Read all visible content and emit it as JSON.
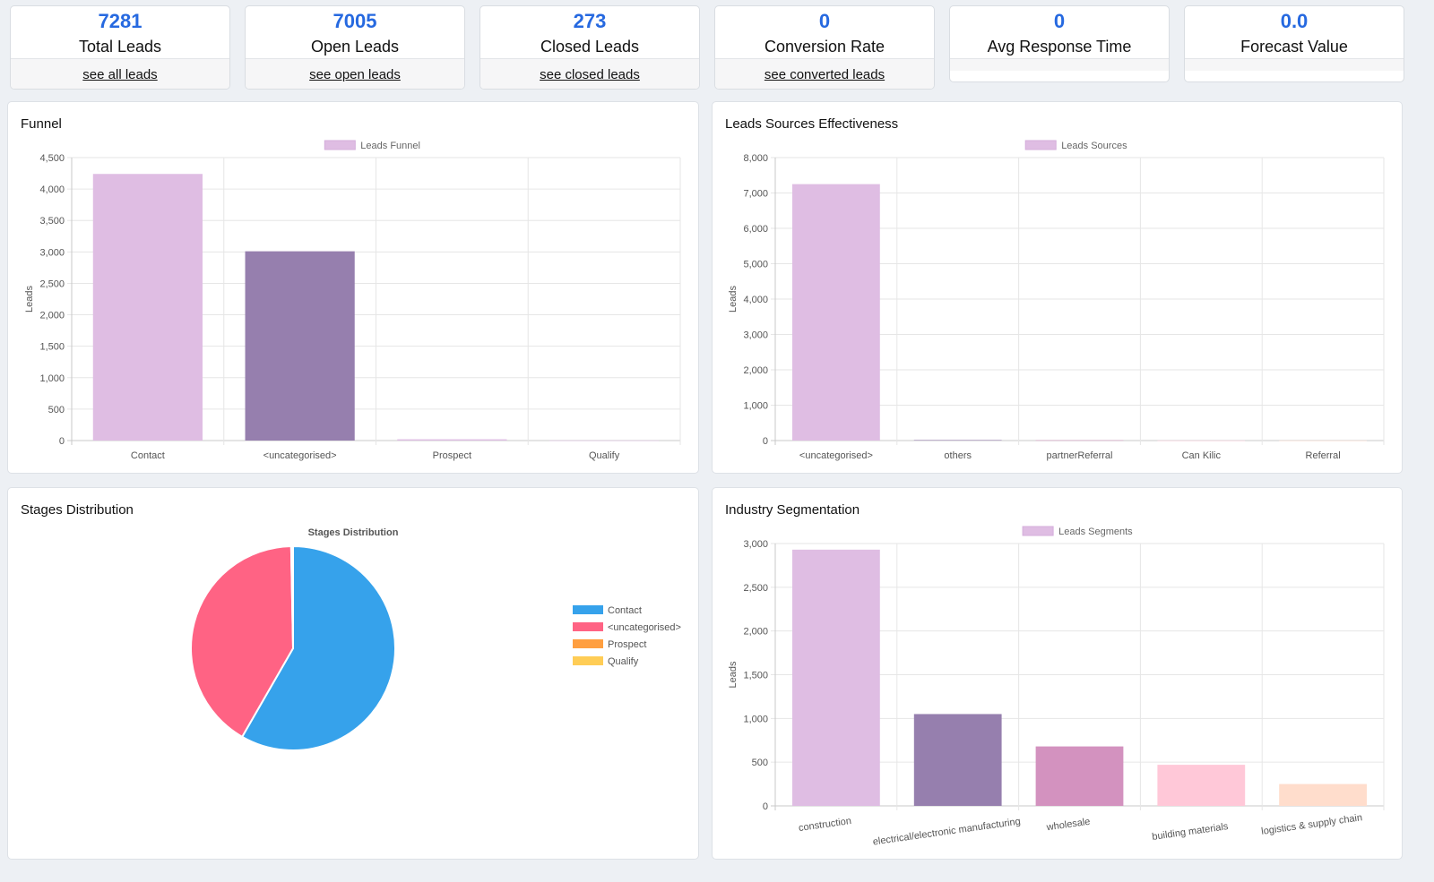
{
  "kpis": [
    {
      "value": "7281",
      "label": "Total Leads",
      "link": "see all leads"
    },
    {
      "value": "7005",
      "label": "Open Leads",
      "link": "see open leads"
    },
    {
      "value": "273",
      "label": "Closed Leads",
      "link": "see closed leads"
    },
    {
      "value": "0",
      "label": "Conversion Rate",
      "link": "see converted leads"
    },
    {
      "value": "0",
      "label": "Avg Response Time",
      "link": ""
    },
    {
      "value": "0.0",
      "label": "Forecast Value",
      "link": ""
    }
  ],
  "cards": {
    "funnel": "Funnel",
    "sources": "Leads Sources Effectiveness",
    "stages": "Stages Distribution",
    "industry": "Industry Segmentation"
  },
  "chart_data": [
    {
      "id": "funnel",
      "type": "bar",
      "legend": "Leads Funnel",
      "legend_placement": "top",
      "ylabel": "Leads",
      "ylim": [
        0,
        4500
      ],
      "ytick_step": 500,
      "grid": true,
      "categories": [
        "Contact",
        "<uncategorised>",
        "Prospect",
        "Qualify"
      ],
      "values": [
        4240,
        3010,
        20,
        2
      ],
      "colors": [
        "#dfbde3",
        "#967fae",
        "#dfbde3",
        "#dfbde3"
      ]
    },
    {
      "id": "sources",
      "type": "bar",
      "legend": "Leads Sources",
      "legend_placement": "top",
      "ylabel": "Leads",
      "ylim": [
        0,
        8000
      ],
      "ytick_step": 1000,
      "grid": true,
      "categories": [
        "<uncategorised>",
        "others",
        "partnerReferral",
        "Can Kilic",
        "Referral"
      ],
      "values": [
        7250,
        15,
        8,
        3,
        2
      ],
      "colors": [
        "#dfbde3",
        "#967fae",
        "#d392bf",
        "#ffc8d8",
        "#ffddcc"
      ]
    },
    {
      "id": "stages",
      "type": "pie",
      "title": "Stages Distribution",
      "legend_placement": "right",
      "labels": [
        "Contact",
        "<uncategorised>",
        "Prospect",
        "Qualify"
      ],
      "values": [
        4240,
        3010,
        20,
        2
      ],
      "colors": [
        "#36a2eb",
        "#ff6384",
        "#ff9f40",
        "#ffcd56"
      ]
    },
    {
      "id": "industry",
      "type": "bar",
      "legend": "Leads Segments",
      "legend_placement": "top",
      "ylabel": "Leads",
      "ylim": [
        0,
        3000
      ],
      "ytick_step": 500,
      "grid": true,
      "categories": [
        "construction",
        "electrical/electronic manufacturing",
        "wholesale",
        "building materials",
        "logistics & supply chain"
      ],
      "values": [
        2930,
        1050,
        680,
        470,
        250
      ],
      "colors": [
        "#dfbde3",
        "#967fae",
        "#d392bf",
        "#ffc8d8",
        "#ffddcc"
      ]
    }
  ]
}
